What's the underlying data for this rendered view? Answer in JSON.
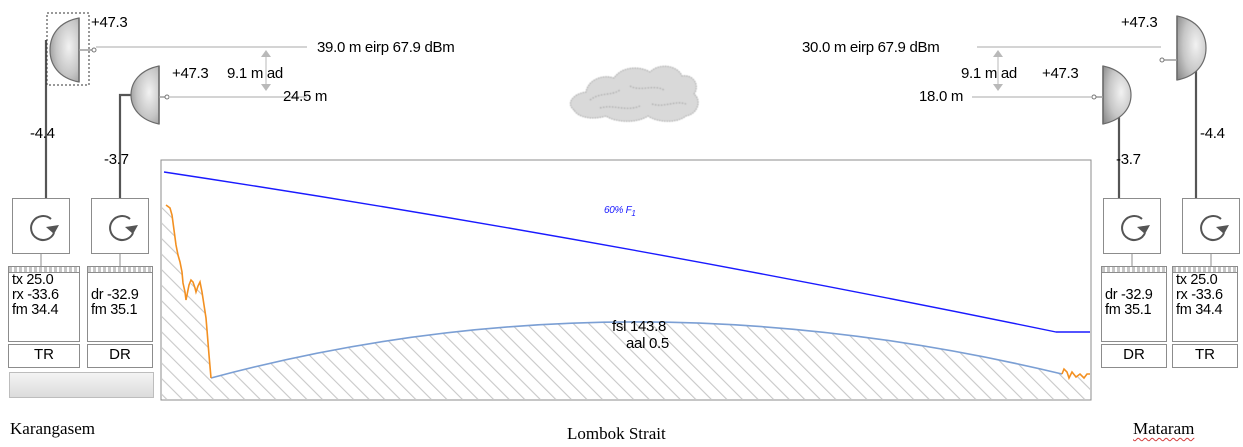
{
  "left_site": {
    "name": "Karangasem",
    "tr": {
      "level": "+47.3",
      "feeder_loss": "-4.4",
      "height_label": "39.0 m eirp 67.9 dBm",
      "stats": [
        "tx 25.0",
        "rx -33.6",
        "fm 34.4"
      ],
      "role": "TR"
    },
    "dr": {
      "level": "+47.3",
      "feeder_loss": "-3.7",
      "ad_label": "9.1 m ad",
      "height_label": "24.5 m",
      "stats": [
        "dr -32.9",
        "fm 35.1"
      ],
      "role": "DR"
    }
  },
  "right_site": {
    "name": "Mataram",
    "tr": {
      "level": "+47.3",
      "feeder_loss": "-4.4",
      "height_label": "30.0 m eirp 67.9 dBm",
      "stats": [
        "tx 25.0",
        "rx -33.6",
        "fm 34.4"
      ],
      "role": "TR"
    },
    "dr": {
      "level": "+47.3",
      "feeder_loss": "-3.7",
      "ad_label": "9.1 m ad",
      "height_label": "18.0 m",
      "stats": [
        "dr -32.9",
        "fm 35.1"
      ],
      "role": "DR"
    }
  },
  "path": {
    "name": "Lombok Strait",
    "fresnel_label": "60% F",
    "fresnel_subscript": "1",
    "fsl_label": "fsl 143.8",
    "aal_label": "aal 0.5"
  },
  "colors": {
    "fresnel_line": "#1a1aff",
    "terrain_line": "#7b9fd4",
    "terrain_land": "#f39021",
    "hatch": "#c8c8c8",
    "frame": "#8c8c8c"
  },
  "icons": [
    "parabolic-antenna-icon",
    "rotate-icon",
    "cloud-icon"
  ]
}
